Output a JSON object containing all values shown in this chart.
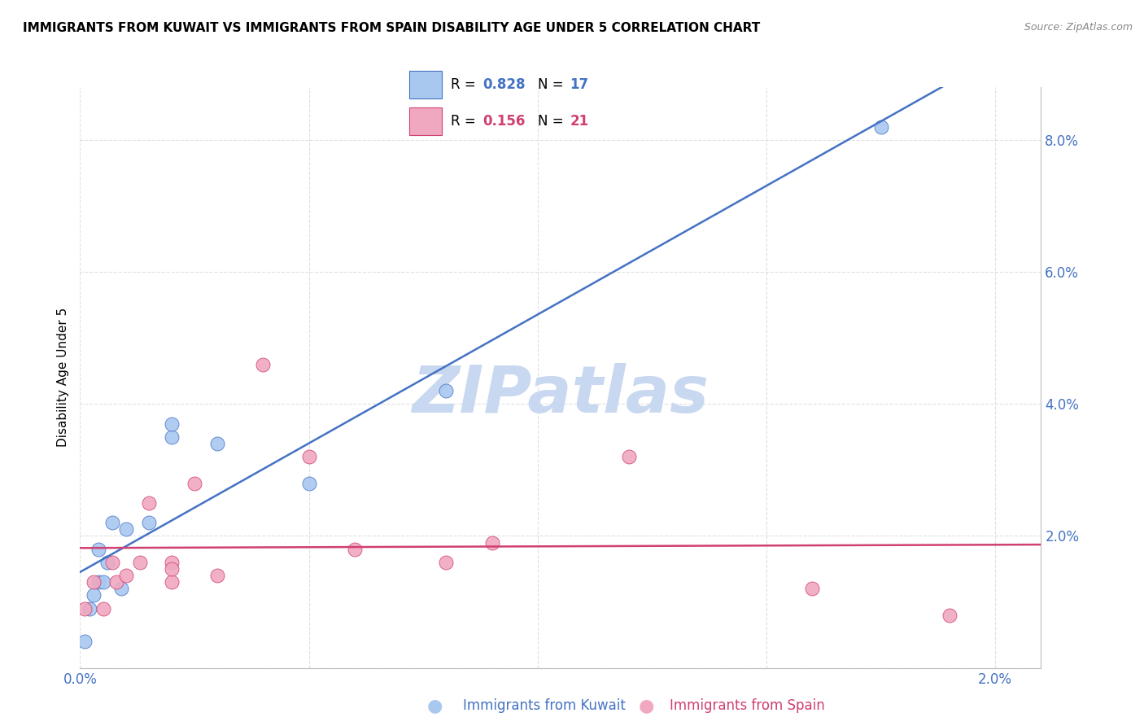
{
  "title": "IMMIGRANTS FROM KUWAIT VS IMMIGRANTS FROM SPAIN DISABILITY AGE UNDER 5 CORRELATION CHART",
  "source": "Source: ZipAtlas.com",
  "ylabel": "Disability Age Under 5",
  "xlabel_kuwait": "Immigrants from Kuwait",
  "xlabel_spain": "Immigrants from Spain",
  "r_kuwait": 0.828,
  "n_kuwait": 17,
  "r_spain": 0.156,
  "n_spain": 21,
  "xmin": 0.0,
  "xmax": 0.021,
  "ymin": 0.0,
  "ymax": 0.088,
  "yticks": [
    0.0,
    0.02,
    0.04,
    0.06,
    0.08
  ],
  "ytick_labels": [
    "",
    "2.0%",
    "4.0%",
    "6.0%",
    "8.0%"
  ],
  "xticks": [
    0.0,
    0.005,
    0.01,
    0.015,
    0.02
  ],
  "xtick_labels": [
    "0.0%",
    "",
    "",
    "",
    "2.0%"
  ],
  "color_kuwait": "#A8C8F0",
  "color_spain": "#F0A8C0",
  "line_color_kuwait": "#4472C4",
  "line_color_spain": "#D04070",
  "watermark_color": "#C8D8F0",
  "kuwait_points_x": [
    0.0001,
    0.0002,
    0.0003,
    0.0004,
    0.0004,
    0.0005,
    0.0006,
    0.0007,
    0.0009,
    0.001,
    0.0015,
    0.002,
    0.002,
    0.003,
    0.005,
    0.008,
    0.0175
  ],
  "kuwait_points_y": [
    0.004,
    0.009,
    0.011,
    0.013,
    0.018,
    0.013,
    0.016,
    0.022,
    0.012,
    0.021,
    0.022,
    0.035,
    0.037,
    0.034,
    0.028,
    0.042,
    0.082
  ],
  "spain_points_x": [
    0.0001,
    0.0003,
    0.0005,
    0.0007,
    0.0008,
    0.001,
    0.0013,
    0.0015,
    0.002,
    0.002,
    0.002,
    0.0025,
    0.003,
    0.004,
    0.005,
    0.006,
    0.008,
    0.009,
    0.012,
    0.016,
    0.019
  ],
  "spain_points_y": [
    0.009,
    0.013,
    0.009,
    0.016,
    0.013,
    0.014,
    0.016,
    0.025,
    0.013,
    0.016,
    0.015,
    0.028,
    0.014,
    0.046,
    0.032,
    0.018,
    0.016,
    0.019,
    0.032,
    0.012,
    0.008
  ],
  "background_color": "#FFFFFF",
  "grid_color": "#DDDDDD"
}
